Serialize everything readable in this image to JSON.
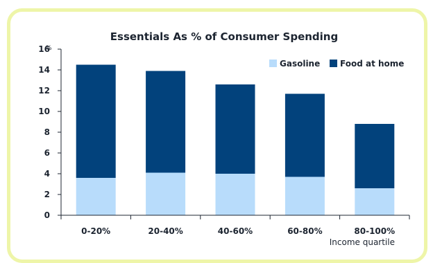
{
  "chart_data": {
    "type": "bar",
    "stacked": true,
    "title": "Essentials As % of Consumer Spending",
    "ylabel": "%",
    "xlabel": "Income quartile",
    "categories": [
      "0-20%",
      "20-40%",
      "40-60%",
      "60-80%",
      "80-100%"
    ],
    "series": [
      {
        "name": "Gasoline",
        "color": "#b8dcfb",
        "values": [
          3.6,
          4.1,
          4.0,
          3.7,
          2.6
        ]
      },
      {
        "name": "Food at home",
        "color": "#02427c",
        "values": [
          10.9,
          9.8,
          8.6,
          8.0,
          6.2
        ]
      }
    ],
    "ylim": [
      0,
      16
    ],
    "yticks": [
      0,
      2,
      4,
      6,
      8,
      10,
      12,
      14,
      16
    ],
    "grid": false,
    "legend_position": "top-right"
  }
}
